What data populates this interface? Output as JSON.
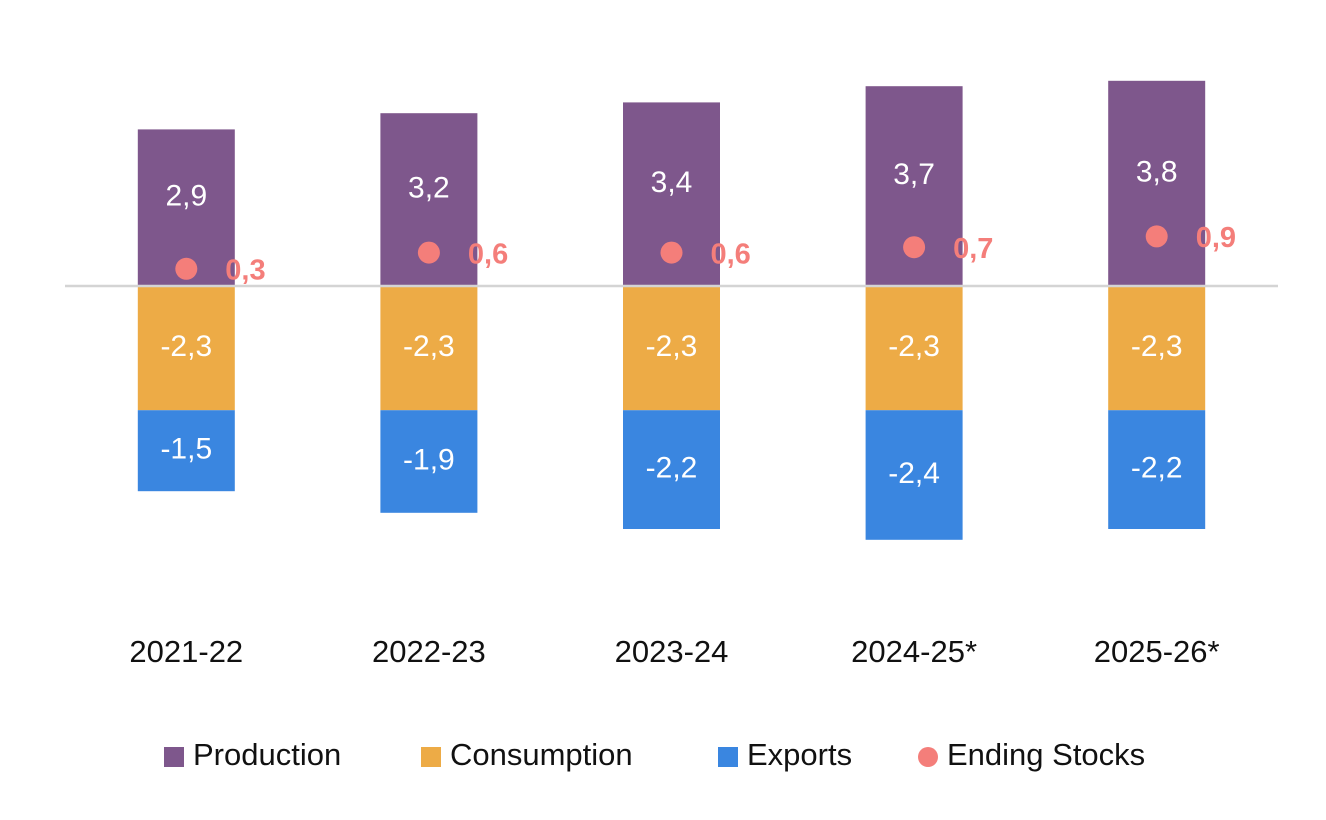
{
  "chart_data": {
    "type": "bar",
    "stacked": true,
    "categories": [
      "2021-22",
      "2022-23",
      "2023-24",
      "2024-25*",
      "2025-26*"
    ],
    "series": [
      {
        "name": "Production",
        "kind": "bar",
        "color": "#7E578C",
        "values": [
          2.9,
          3.2,
          3.4,
          3.7,
          3.8
        ],
        "labels": [
          "2,9",
          "3,2",
          "3,4",
          "3,7",
          "3,8"
        ]
      },
      {
        "name": "Consumption",
        "kind": "bar",
        "color": "#EDAB46",
        "values": [
          -2.3,
          -2.3,
          -2.3,
          -2.3,
          -2.3
        ],
        "labels": [
          "-2,3",
          "-2,3",
          "-2,3",
          "-2,3",
          "-2,3"
        ]
      },
      {
        "name": "Exports",
        "kind": "bar",
        "color": "#3A86E0",
        "values": [
          -1.5,
          -1.9,
          -2.2,
          -2.4,
          -2.2
        ],
        "labels": [
          "-1,5",
          "-1,9",
          "-2,2",
          "-2,4",
          "-2,2"
        ]
      },
      {
        "name": "Ending Stocks",
        "kind": "point",
        "color": "#F47E7A",
        "values": [
          0.3,
          0.6,
          0.6,
          0.7,
          0.9
        ],
        "labels": [
          "0,3",
          "0,6",
          "0,6",
          "0,7",
          "0,9"
        ]
      }
    ],
    "ylim": [
      -4.8,
      4.7
    ],
    "grid": false,
    "legend_position": "bottom",
    "zero_line_color": "#D4D4D4"
  }
}
